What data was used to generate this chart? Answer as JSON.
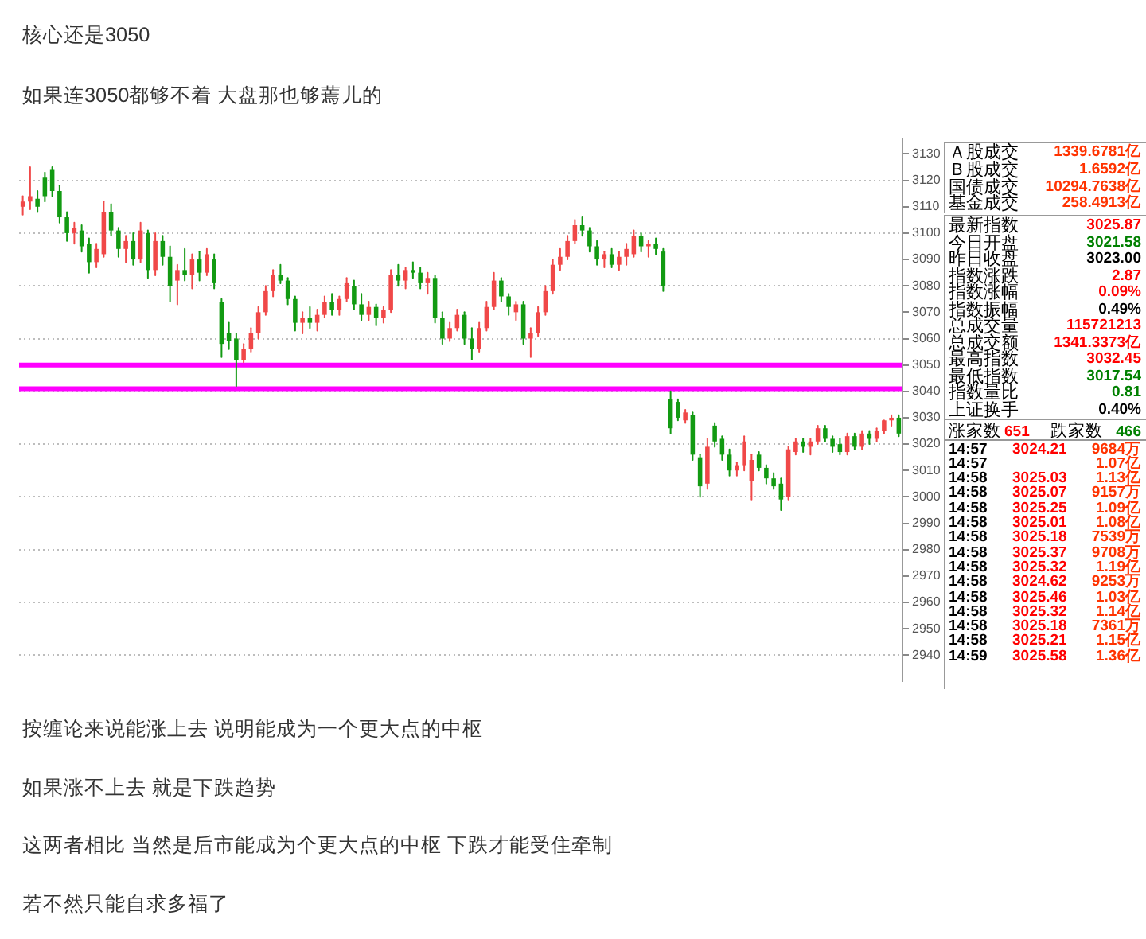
{
  "chart_data": [
    {
      "type": "candlestick",
      "title": "核心还是3050",
      "subtitle": "如果连3050都够不着 大盘那也够蔫儿的",
      "annotations": [
        "按缠论来说能涨上去 说明能成为一个更大点的中枢",
        "如果涨不上去 就是下跌趋势",
        "这两者相比 当然是后市能成为个更大点的中枢 下跌才能受住牵制",
        "若不然只能自求多福了"
      ],
      "categories": [
        null,
        null,
        null,
        null,
        null,
        null,
        null,
        null,
        null,
        null,
        null,
        null,
        null,
        null,
        null,
        null,
        null,
        null,
        null,
        null,
        null,
        null,
        null,
        null,
        null,
        null,
        null,
        null,
        null,
        null,
        null,
        null,
        null,
        null,
        null,
        null,
        null,
        null,
        null,
        null,
        null,
        null,
        null,
        null,
        null,
        null,
        null,
        null,
        null,
        null,
        null,
        null,
        null,
        null,
        null,
        null,
        null,
        null,
        null,
        null,
        null,
        null,
        null,
        null,
        null,
        null,
        null,
        null,
        null,
        null,
        null,
        null,
        null,
        null,
        null,
        null,
        null,
        null,
        null,
        null,
        null,
        null,
        null,
        null,
        null,
        null,
        null,
        null,
        null,
        null,
        null,
        null,
        null,
        null,
        null,
        null,
        null,
        null,
        null,
        null,
        null,
        null,
        null,
        null,
        null,
        null,
        null,
        null,
        null,
        null,
        null,
        null,
        null,
        null,
        null,
        null,
        null,
        null,
        null,
        null
      ],
      "ohlc": [
        [
          3110,
          3114,
          3107,
          3112
        ],
        [
          3112,
          3125,
          3109,
          3114
        ],
        [
          3113,
          3116,
          3108,
          3110
        ],
        [
          3121,
          3123,
          3112,
          3114
        ],
        [
          3124,
          3125,
          3114,
          3116
        ],
        [
          3116,
          3118,
          3104,
          3106
        ],
        [
          3106,
          3108,
          3097,
          3100
        ],
        [
          3100,
          3104,
          3096,
          3102
        ],
        [
          3101,
          3103,
          3093,
          3095
        ],
        [
          3096,
          3098,
          3085,
          3089
        ],
        [
          3089,
          3096,
          3087,
          3094
        ],
        [
          3092,
          3112,
          3091,
          3108
        ],
        [
          3108,
          3111,
          3099,
          3101
        ],
        [
          3101,
          3102,
          3091,
          3094
        ],
        [
          3094,
          3099,
          3089,
          3097
        ],
        [
          3097,
          3100,
          3088,
          3090
        ],
        [
          3090,
          3104,
          3089,
          3101
        ],
        [
          3100,
          3101,
          3083,
          3086
        ],
        [
          3086,
          3100,
          3084,
          3097
        ],
        [
          3097,
          3099,
          3088,
          3091
        ],
        [
          3091,
          3095,
          3074,
          3080
        ],
        [
          3082,
          3088,
          3073,
          3086
        ],
        [
          3086,
          3094,
          3082,
          3084
        ],
        [
          3084,
          3092,
          3079,
          3090
        ],
        [
          3090,
          3093,
          3082,
          3085
        ],
        [
          3085,
          3094,
          3084,
          3092
        ],
        [
          3090,
          3092,
          3079,
          3081
        ],
        [
          3074,
          3075,
          3053,
          3058
        ],
        [
          3062,
          3066,
          3056,
          3059
        ],
        [
          3060,
          3062,
          3042,
          3052
        ],
        [
          3052,
          3058,
          3051,
          3056
        ],
        [
          3056,
          3064,
          3055,
          3062
        ],
        [
          3062,
          3072,
          3060,
          3070
        ],
        [
          3070,
          3080,
          3069,
          3078
        ],
        [
          3078,
          3086,
          3076,
          3084
        ],
        [
          3084,
          3088,
          3081,
          3082
        ],
        [
          3082,
          3083,
          3073,
          3075
        ],
        [
          3075,
          3076,
          3063,
          3066
        ],
        [
          3066,
          3070,
          3062,
          3068
        ],
        [
          3068,
          3072,
          3064,
          3066
        ],
        [
          3066,
          3071,
          3063,
          3069
        ],
        [
          3069,
          3076,
          3068,
          3074
        ],
        [
          3074,
          3077,
          3069,
          3071
        ],
        [
          3071,
          3076,
          3069,
          3075
        ],
        [
          3075,
          3083,
          3074,
          3081
        ],
        [
          3080,
          3082,
          3071,
          3073
        ],
        [
          3073,
          3077,
          3067,
          3069
        ],
        [
          3069,
          3074,
          3067,
          3072
        ],
        [
          3072,
          3073,
          3065,
          3068
        ],
        [
          3068,
          3072,
          3066,
          3071
        ],
        [
          3071,
          3086,
          3070,
          3084
        ],
        [
          3084,
          3088,
          3080,
          3082
        ],
        [
          3082,
          3087,
          3079,
          3086
        ],
        [
          3086,
          3089,
          3083,
          3085
        ],
        [
          3085,
          3087,
          3079,
          3081
        ],
        [
          3081,
          3085,
          3077,
          3083
        ],
        [
          3083,
          3084,
          3066,
          3068
        ],
        [
          3068,
          3070,
          3058,
          3060
        ],
        [
          3060,
          3066,
          3059,
          3064
        ],
        [
          3064,
          3071,
          3063,
          3069
        ],
        [
          3069,
          3070,
          3058,
          3060
        ],
        [
          3060,
          3064,
          3052,
          3056
        ],
        [
          3056,
          3066,
          3055,
          3064
        ],
        [
          3064,
          3074,
          3063,
          3072
        ],
        [
          3072,
          3085,
          3071,
          3082
        ],
        [
          3082,
          3083,
          3074,
          3076
        ],
        [
          3076,
          3077,
          3069,
          3072
        ],
        [
          3070,
          3074,
          3067,
          3073
        ],
        [
          3073,
          3074,
          3058,
          3060
        ],
        [
          3060,
          3064,
          3053,
          3062
        ],
        [
          3062,
          3072,
          3061,
          3070
        ],
        [
          3070,
          3080,
          3069,
          3078
        ],
        [
          3078,
          3090,
          3077,
          3088
        ],
        [
          3088,
          3094,
          3086,
          3091
        ],
        [
          3091,
          3099,
          3090,
          3097
        ],
        [
          3097,
          3105,
          3096,
          3103
        ],
        [
          3103,
          3106,
          3099,
          3101
        ],
        [
          3101,
          3102,
          3093,
          3095
        ],
        [
          3095,
          3097,
          3088,
          3090
        ],
        [
          3090,
          3093,
          3087,
          3092
        ],
        [
          3092,
          3094,
          3087,
          3088
        ],
        [
          3088,
          3093,
          3086,
          3091
        ],
        [
          3091,
          3096,
          3088,
          3094
        ],
        [
          3092,
          3101,
          3091,
          3099
        ],
        [
          3099,
          3100,
          3093,
          3095
        ],
        [
          3095,
          3097,
          3091,
          3096
        ],
        [
          3096,
          3098,
          3092,
          3094
        ],
        [
          3093,
          3094,
          3078,
          3080
        ],
        [
          3037,
          3040,
          3024,
          3026
        ],
        [
          3036,
          3037,
          3029,
          3030
        ],
        [
          3029,
          3033,
          3028,
          3032
        ],
        [
          3031,
          3032,
          3014,
          3016
        ],
        [
          3015,
          3016,
          3000,
          3004
        ],
        [
          3005,
          3022,
          3003,
          3019
        ],
        [
          3027,
          3028,
          3019,
          3021
        ],
        [
          3022,
          3023,
          3014,
          3016
        ],
        [
          3016,
          3018,
          3008,
          3010
        ],
        [
          3010,
          3013,
          3008,
          3012
        ],
        [
          3012,
          3023,
          3010,
          3021
        ],
        [
          3006,
          3016,
          2999,
          3014
        ],
        [
          3016,
          3017,
          3010,
          3011
        ],
        [
          3011,
          3012,
          3005,
          3007
        ],
        [
          3007,
          3009,
          3003,
          3004
        ],
        [
          3005,
          3007,
          2995,
          2999
        ],
        [
          3000,
          3019,
          2999,
          3018
        ],
        [
          3017,
          3022,
          3016,
          3021
        ],
        [
          3021,
          3022,
          3017,
          3019
        ],
        [
          3019,
          3022,
          3016,
          3021
        ],
        [
          3021,
          3027,
          3020,
          3026
        ],
        [
          3026,
          3027,
          3021,
          3022
        ],
        [
          3022,
          3023,
          3017,
          3019
        ],
        [
          3020,
          3022,
          3016,
          3017
        ],
        [
          3017,
          3024,
          3016,
          3023
        ],
        [
          3023,
          3024,
          3018,
          3019
        ],
        [
          3019,
          3025,
          3018,
          3024
        ],
        [
          3024,
          3025,
          3020,
          3022
        ],
        [
          3022,
          3026,
          3021,
          3025
        ],
        [
          3025,
          3029,
          3024,
          3029
        ],
        [
          3029,
          3031,
          3027,
          3030
        ],
        [
          3030,
          3031,
          3023,
          3024
        ]
      ],
      "colors": [
        "#f04848",
        "#f04848",
        "#129a12",
        "#129a12",
        "#129a12",
        "#129a12",
        "#129a12",
        "#f04848",
        "#129a12",
        "#129a12",
        "#f04848",
        "#f04848",
        "#129a12",
        "#129a12",
        "#f04848",
        "#129a12",
        "#f04848",
        "#129a12",
        "#f04848",
        "#129a12",
        "#129a12",
        "#f04848",
        "#129a12",
        "#f04848",
        "#129a12",
        "#f04848",
        "#129a12",
        "#129a12",
        "#129a12",
        "#129a12",
        "#f04848",
        "#f04848",
        "#f04848",
        "#f04848",
        "#f04848",
        "#129a12",
        "#129a12",
        "#129a12",
        "#f04848",
        "#129a12",
        "#f04848",
        "#f04848",
        "#129a12",
        "#f04848",
        "#f04848",
        "#129a12",
        "#129a12",
        "#f04848",
        "#129a12",
        "#f04848",
        "#f04848",
        "#129a12",
        "#f04848",
        "#129a12",
        "#129a12",
        "#f04848",
        "#129a12",
        "#129a12",
        "#f04848",
        "#f04848",
        "#129a12",
        "#129a12",
        "#f04848",
        "#f04848",
        "#f04848",
        "#129a12",
        "#129a12",
        "#f04848",
        "#129a12",
        "#f04848",
        "#f04848",
        "#f04848",
        "#f04848",
        "#f04848",
        "#f04848",
        "#f04848",
        "#129a12",
        "#129a12",
        "#129a12",
        "#f04848",
        "#129a12",
        "#f04848",
        "#f04848",
        "#f04848",
        "#129a12",
        "#f04848",
        "#129a12",
        "#129a12",
        "#129a12",
        "#129a12",
        "#f04848",
        "#129a12",
        "#129a12",
        "#f04848",
        "#129a12",
        "#129a12",
        "#129a12",
        "#f04848",
        "#f04848",
        "#f04848",
        "#129a12",
        "#129a12",
        "#129a12",
        "#129a12",
        "#f04848",
        "#f04848",
        "#129a12",
        "#f04848",
        "#f04848",
        "#129a12",
        "#129a12",
        "#129a12",
        "#f04848",
        "#129a12",
        "#f04848",
        "#129a12",
        "#f04848",
        "#f04848",
        "#f04848",
        "#129a12"
      ],
      "ylim": [
        2930,
        3136
      ],
      "yticks": [
        2940,
        2950,
        2960,
        2970,
        2980,
        2990,
        3000,
        3010,
        3020,
        3030,
        3040,
        3050,
        3060,
        3070,
        3080,
        3090,
        3100,
        3110,
        3120,
        3130
      ],
      "grid": "y",
      "tick_labels": "y",
      "ref_lines": [
        {
          "axis": "y",
          "value": 3050,
          "color": "#ff00ff"
        },
        {
          "axis": "y",
          "value": 3041,
          "color": "#ff00ff"
        }
      ]
    },
    {
      "type": "other",
      "categories": [
        "Ａ股成交",
        "Ｂ股成交",
        "国债成交",
        "基金成交"
      ],
      "values": [
        1339.6781,
        1.6592,
        10294.7638,
        258.4913
      ],
      "value_labels": [
        "1339.6781亿",
        "1.6592亿",
        "10294.7638亿",
        "258.4913亿"
      ],
      "color": "#ff3300"
    },
    {
      "type": "other",
      "categories": [
        "最新指数",
        "今日开盘",
        "昨日收盘",
        "指数涨跌",
        "指数涨幅",
        "指数振幅",
        "总成交量",
        "总成交额",
        "最高指数",
        "最低指数",
        "指数量比",
        "上证换手"
      ],
      "values": [
        3025.87,
        3021.58,
        3023.0,
        2.87,
        0.09,
        0.49,
        115721213,
        1341.3373,
        3032.45,
        3017.54,
        0.81,
        0.4
      ],
      "value_labels": [
        "3025.87",
        "3021.58",
        "3023.00",
        "2.87",
        "0.09%",
        "0.49%",
        "115721213",
        "1341.3373亿",
        "3032.45",
        "3017.54",
        "0.81",
        "0.40%"
      ],
      "colors": [
        "#ff0000",
        "#008000",
        "#000000",
        "#ff0000",
        "#ff0000",
        "#000000",
        "#ff0000",
        "#ff0000",
        "#ff0000",
        "#008000",
        "#008000",
        "#000000"
      ]
    },
    {
      "type": "other",
      "categories": [
        "涨家数",
        "跌家数"
      ],
      "values": [
        651,
        466
      ],
      "colors": [
        "#ff0000",
        "#008000"
      ],
      "data_labels": true
    },
    {
      "type": "other",
      "categories": [
        "14:57",
        "14:57",
        "14:58",
        "14:58",
        "14:58",
        "14:58",
        "14:58",
        "14:58",
        "14:58",
        "14:58",
        "14:58",
        "14:58",
        "14:58",
        "14:58",
        "14:59"
      ],
      "series": [
        {
          "color": "#ff0000",
          "values": [
            3024.21,
            null,
            3025.03,
            3025.07,
            3025.25,
            3025.01,
            3025.18,
            3025.37,
            3025.32,
            3024.62,
            3025.46,
            3025.32,
            3025.18,
            3025.21,
            3025.58
          ],
          "value_labels": [
            "3024.21",
            null,
            "3025.03",
            "3025.07",
            "3025.25",
            "3025.01",
            "3025.18",
            "3025.37",
            "3025.32",
            "3024.62",
            "3025.46",
            "3025.32",
            "3025.18",
            "3025.21",
            "3025.58"
          ]
        },
        {
          "color": "#ff3300",
          "values": [
            9684,
            1.07,
            1.13,
            9157,
            1.09,
            1.08,
            7539,
            9708,
            1.19,
            9253,
            1.03,
            1.14,
            7361,
            1.15,
            1.36
          ],
          "value_labels": [
            "9684万",
            "1.07亿",
            "1.13亿",
            "9157万",
            "1.09亿",
            "1.08亿",
            "7539万",
            "9708万",
            "1.19亿",
            "9253万",
            "1.03亿",
            "1.14亿",
            "7361万",
            "1.15亿",
            "1.36亿"
          ]
        }
      ]
    }
  ]
}
